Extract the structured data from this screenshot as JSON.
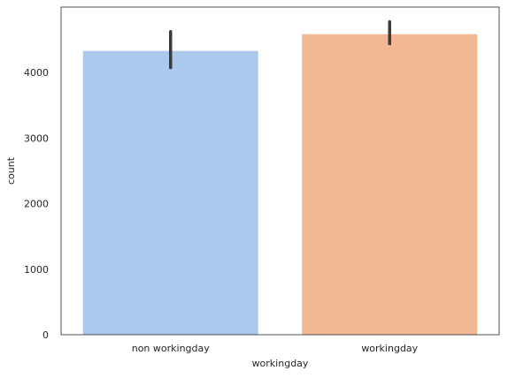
{
  "chart_data": {
    "type": "bar",
    "title": "",
    "xlabel": "workingday",
    "ylabel": "count",
    "categories": [
      "non workingday",
      "workingday"
    ],
    "values": [
      4330,
      4585
    ],
    "error_bars": [
      {
        "low": 4075,
        "high": 4625
      },
      {
        "low": 4440,
        "high": 4775
      }
    ],
    "ylim": [
      0,
      4999
    ],
    "yticks": [
      0,
      1000,
      2000,
      3000,
      4000
    ],
    "bar_colors": [
      "#abc9ed",
      "#f1b893"
    ],
    "error_color": "#3a3a3a",
    "grid": false,
    "legend": "none"
  }
}
